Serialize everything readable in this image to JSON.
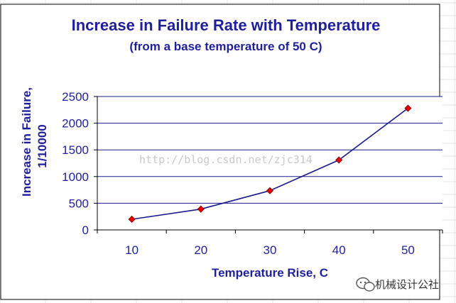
{
  "chart_data": {
    "type": "line",
    "title": "Increase in Failure Rate with Temperature",
    "subtitle": "(from a base temperature of 50 C)",
    "xlabel": "Temperature Rise, C",
    "ylabel_line1": "Increase in Failure,",
    "ylabel_line2": "1/10000",
    "categories": [
      "10",
      "20",
      "30",
      "40",
      "50"
    ],
    "x": [
      10,
      20,
      30,
      40,
      50
    ],
    "series": [
      {
        "values": [
          200,
          390,
          735,
          1310,
          2280
        ]
      }
    ],
    "ylim": [
      0,
      2500
    ],
    "yticks": [
      0,
      500,
      1000,
      1500,
      2000,
      2500
    ],
    "grid": true,
    "line_color": "#1a1a8c",
    "marker_color": "#e60000",
    "grid_color": "#1a1a8c"
  },
  "watermark": "http://blog.csdn.net/zjc314",
  "brand": {
    "text": "机械设计公社",
    "icon": "wechat-icon"
  }
}
